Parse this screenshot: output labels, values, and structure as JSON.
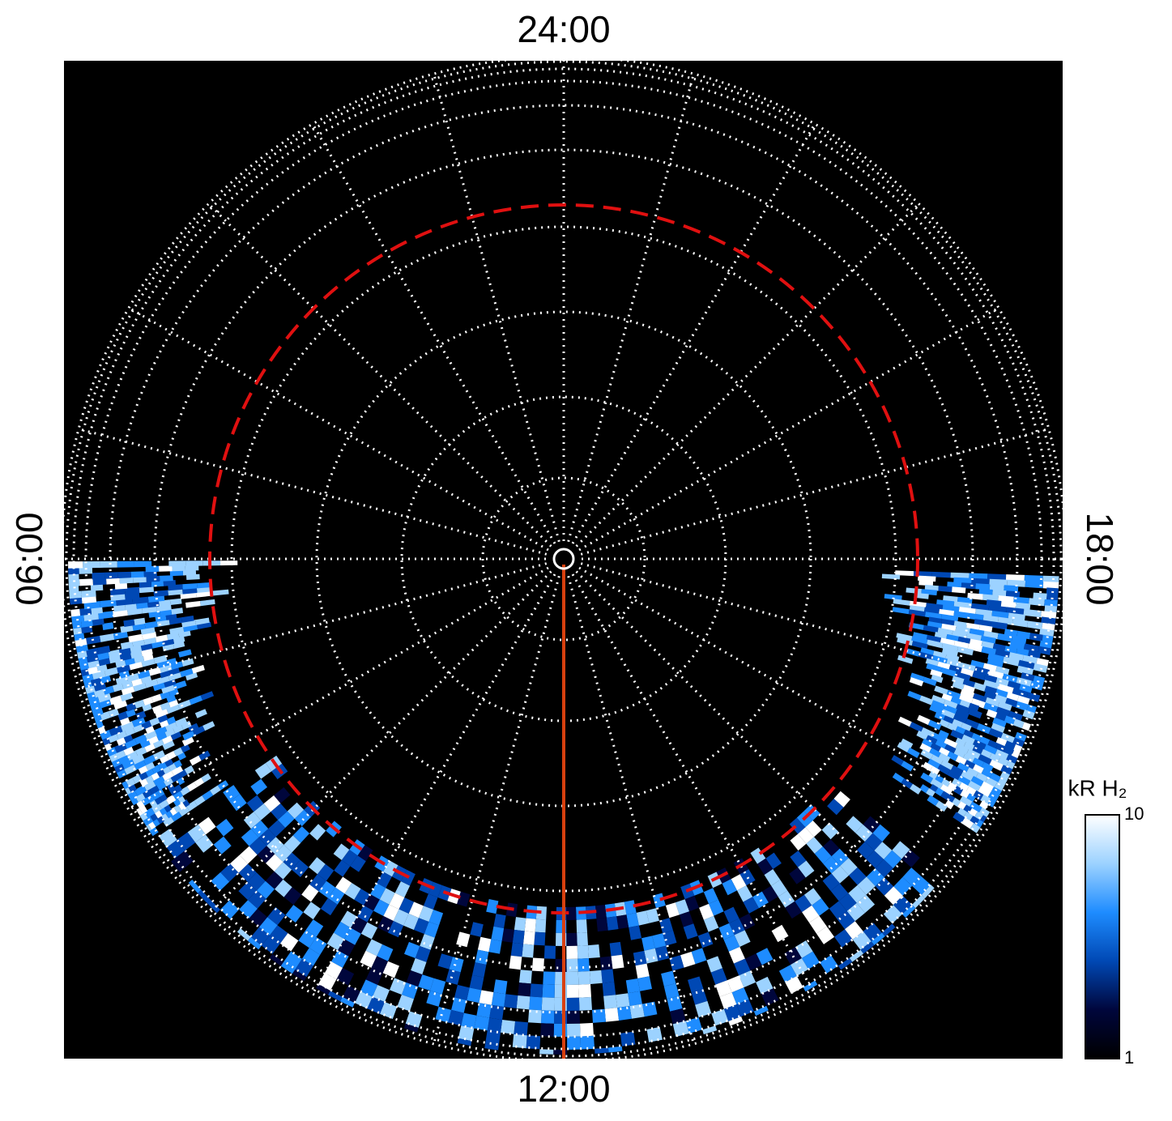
{
  "chart_data": {
    "type": "polar-map",
    "local_time_labels": {
      "top": "24:00",
      "left": "06:00",
      "bottom": "12:00",
      "right": "18:00"
    },
    "colorbar": {
      "title": "kR H₂",
      "clim": [
        1,
        10
      ],
      "cticks": [
        1,
        10
      ],
      "log": true,
      "colormap": [
        "#000000",
        "#00063c",
        "#0048b4",
        "#1e8cff",
        "#9cd2ff",
        "#ffffff"
      ]
    },
    "grid": true
  }
}
